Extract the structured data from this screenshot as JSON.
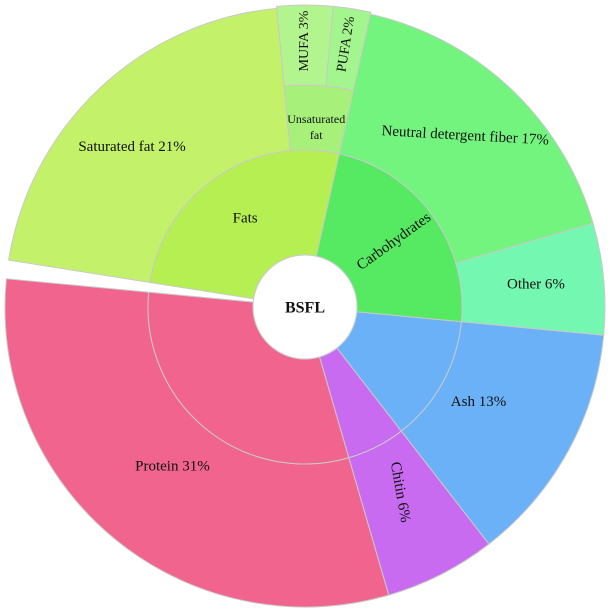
{
  "chart_data": {
    "type": "sunburst",
    "center_label": "BSFL",
    "inner_ring": [
      {
        "name": "Fats",
        "value": 26,
        "color": "#bef45a"
      },
      {
        "name": "Carbohydrates",
        "value": 23,
        "color": "#5fed6a"
      },
      {
        "name": "Ash 13%",
        "value": 13,
        "color": "#6ab1f8"
      },
      {
        "name": "Chitin 6%",
        "value": 6,
        "color": "#c86bf0"
      },
      {
        "name": "Protein 31%",
        "value": 31,
        "color": "#f0648d"
      }
    ],
    "outer_ring": [
      {
        "name": "Unsaturated fat",
        "parent": "Fats",
        "value": 5,
        "color": "#a7f07a"
      },
      {
        "name": "Neutral detergent fiber 17%",
        "parent": "Carbohydrates",
        "value": 17,
        "color": "#72f47e"
      },
      {
        "name": "Other 6%",
        "parent": "Carbohydrates",
        "value": 6,
        "color": "#74f7b1"
      }
    ],
    "third_ring": [
      {
        "name": "MUFA 3%",
        "parent": "Unsaturated fat",
        "value": 3,
        "color": "#b2f58f"
      },
      {
        "name": "PUFA 2%",
        "parent": "Unsaturated fat",
        "value": 2,
        "color": "#a3f68d"
      }
    ],
    "wedge_labels": [
      {
        "name": "Saturated fat 21%",
        "parent": "Fats",
        "value": 21
      }
    ]
  }
}
